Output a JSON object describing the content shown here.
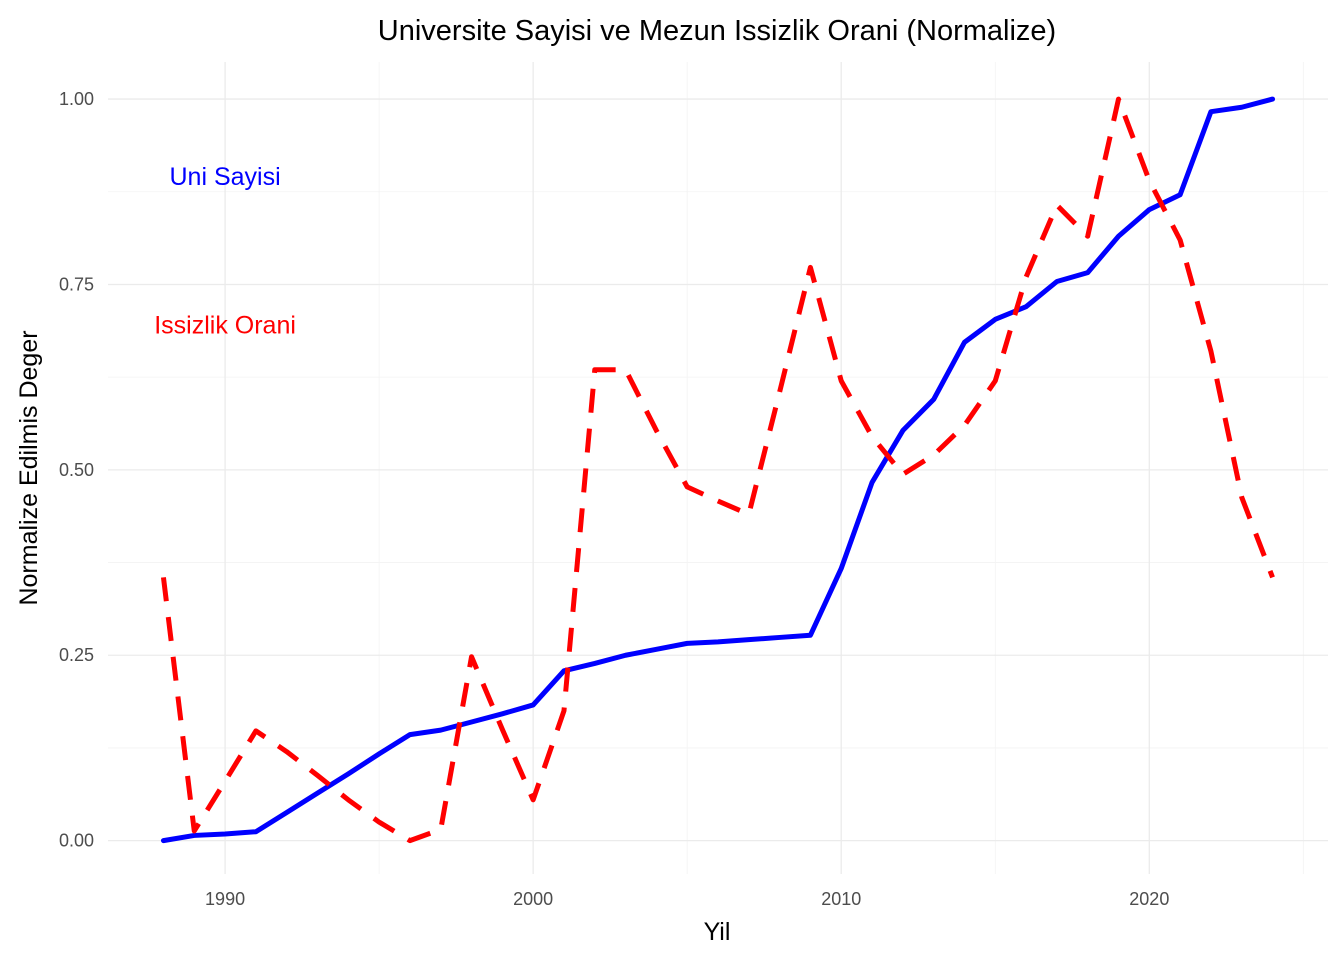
{
  "chart_data": {
    "type": "line",
    "title": "Universite Sayisi ve Mezun Issizlik Orani (Normalize)",
    "xlabel": "Yil",
    "ylabel": "Normalize Edilmis Deger",
    "xlim": [
      1986.2,
      2025.8
    ],
    "ylim": [
      -0.045,
      1.05
    ],
    "x_ticks": [
      1990,
      2000,
      2010,
      2020
    ],
    "x_tick_labels": [
      "1990",
      "2000",
      "2010",
      "2020"
    ],
    "y_ticks": [
      0,
      0.25,
      0.5,
      0.75,
      1.0
    ],
    "y_tick_labels": [
      "0.00",
      "0.25",
      "0.50",
      "0.75",
      "1.00"
    ],
    "grid": true,
    "legend": "none",
    "series": [
      {
        "name": "Uni Sayisi",
        "color": "#0000ff",
        "style": "solid",
        "x": [
          1988,
          1989,
          1990,
          1991,
          1992,
          1993,
          1994,
          1995,
          1996,
          1997,
          1998,
          1999,
          2000,
          2001,
          2002,
          2003,
          2004,
          2005,
          2006,
          2007,
          2008,
          2009,
          2010,
          2011,
          2012,
          2013,
          2014,
          2015,
          2016,
          2017,
          2018,
          2019,
          2020,
          2021,
          2022,
          2023,
          2024
        ],
        "values": [
          0.0,
          0.007,
          0.009,
          0.012,
          0.038,
          0.064,
          0.09,
          0.117,
          0.143,
          0.149,
          0.16,
          0.171,
          0.183,
          0.229,
          0.239,
          0.25,
          0.258,
          0.266,
          0.268,
          0.271,
          0.274,
          0.277,
          0.367,
          0.483,
          0.553,
          0.595,
          0.672,
          0.703,
          0.72,
          0.754,
          0.766,
          0.815,
          0.851,
          0.871,
          0.983,
          0.989,
          1.0
        ]
      },
      {
        "name": "Issizlik Orani",
        "color": "#ff0000",
        "style": "dashed",
        "x": [
          1988,
          1989,
          1990,
          1991,
          1992,
          1993,
          1994,
          1995,
          1996,
          1997,
          1998,
          1999,
          2000,
          2001,
          2002,
          2003,
          2004,
          2005,
          2006,
          2007,
          2008,
          2009,
          2010,
          2011,
          2012,
          2013,
          2014,
          2015,
          2016,
          2017,
          2018,
          2019,
          2020,
          2021,
          2022,
          2023,
          2024
        ],
        "values": [
          0.355,
          0.013,
          0.08,
          0.148,
          0.12,
          0.088,
          0.055,
          0.025,
          0.0,
          0.015,
          0.248,
          0.15,
          0.055,
          0.175,
          0.635,
          0.635,
          0.553,
          0.477,
          0.458,
          0.44,
          0.605,
          0.773,
          0.62,
          0.545,
          0.494,
          0.52,
          0.56,
          0.62,
          0.76,
          0.857,
          0.815,
          1.0,
          0.89,
          0.81,
          0.66,
          0.463,
          0.355
        ]
      }
    ],
    "annotations": [
      {
        "text": "Uni Sayisi",
        "x": 1990,
        "y": 0.895,
        "color": "#0000ff"
      },
      {
        "text": "Issizlik Orani",
        "x": 1990,
        "y": 0.695,
        "color": "#ff0000"
      }
    ]
  }
}
